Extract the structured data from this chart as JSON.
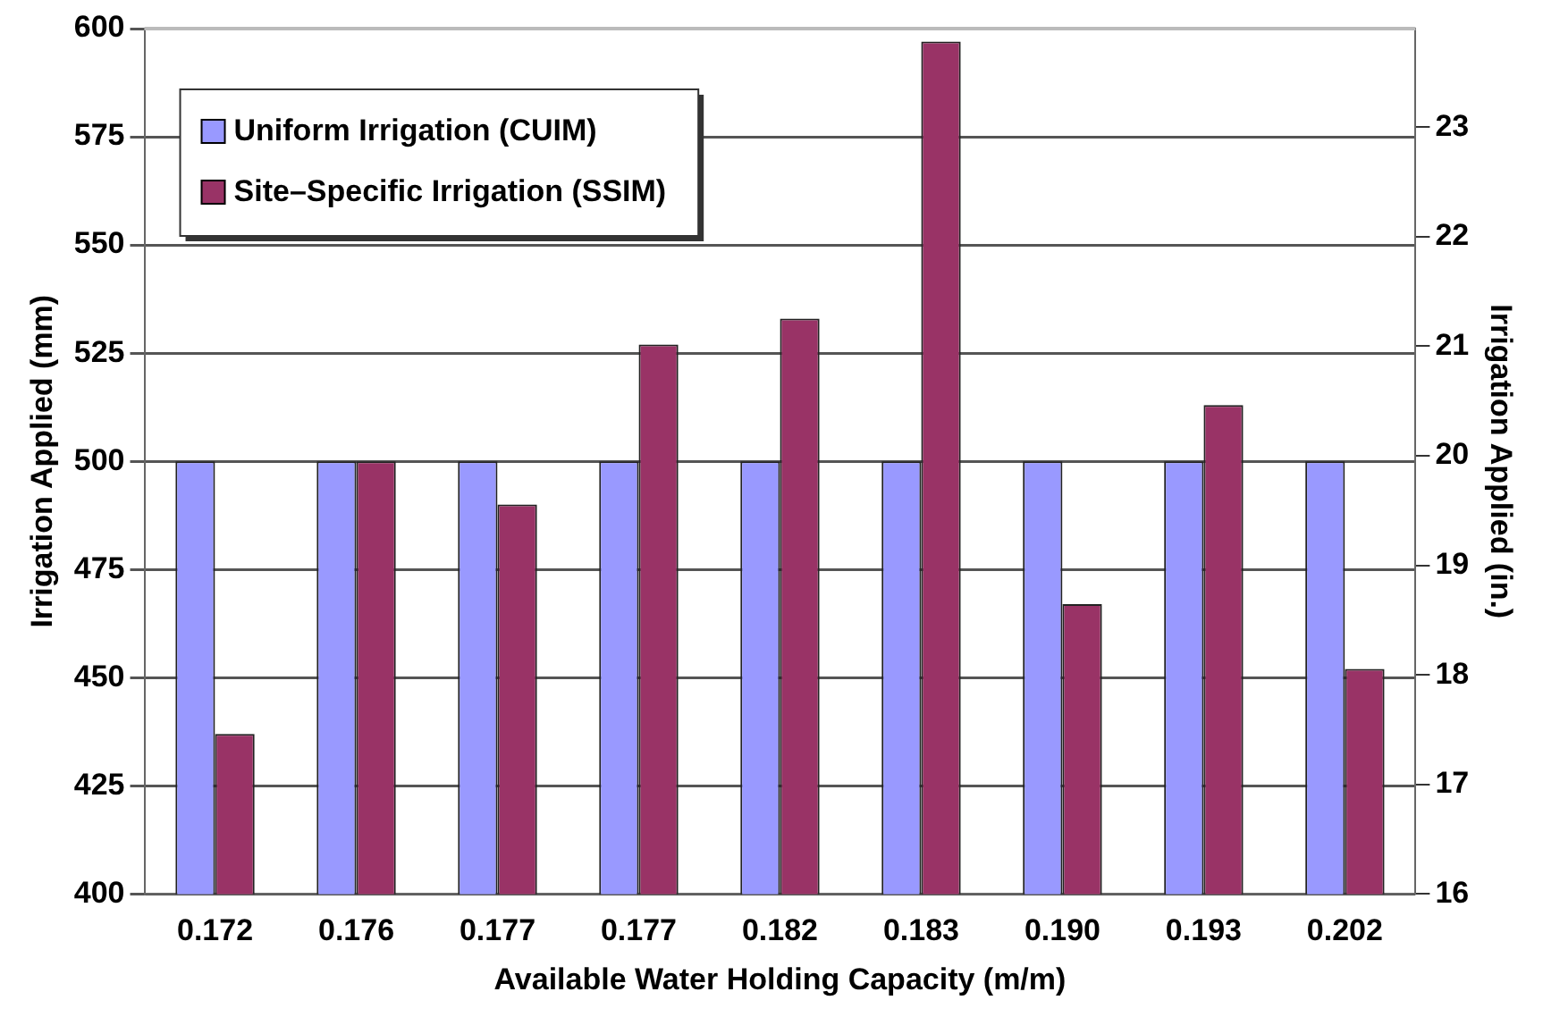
{
  "chart_data": {
    "type": "bar",
    "xlabel": "Available Water Holding Capacity (m/m)",
    "ylabel": "Irrigation Applied (mm)",
    "y2label": "Irrigation Applied (in.)",
    "categories": [
      "0.172",
      "0.176",
      "0.177",
      "0.177",
      "0.182",
      "0.183",
      "0.190",
      "0.193",
      "0.202"
    ],
    "series": [
      {
        "name": "Uniform Irrigation (CUIM)",
        "color": "#9999ff",
        "values": [
          500,
          500,
          500,
          500,
          500,
          500,
          500,
          500,
          500
        ]
      },
      {
        "name": "Site–Specific Irrigation (SSIM)",
        "color": "#993366",
        "values": [
          437,
          500,
          490,
          527,
          533,
          597,
          467,
          513,
          452
        ]
      }
    ],
    "ylim": [
      400,
      600
    ],
    "yticks": [
      400,
      425,
      450,
      475,
      500,
      525,
      550,
      575,
      600
    ],
    "y2lim": [
      16,
      23.9
    ],
    "y2ticks": [
      16,
      17,
      18,
      19,
      20,
      21,
      22,
      23
    ],
    "grid": "y",
    "legend": "top left"
  }
}
